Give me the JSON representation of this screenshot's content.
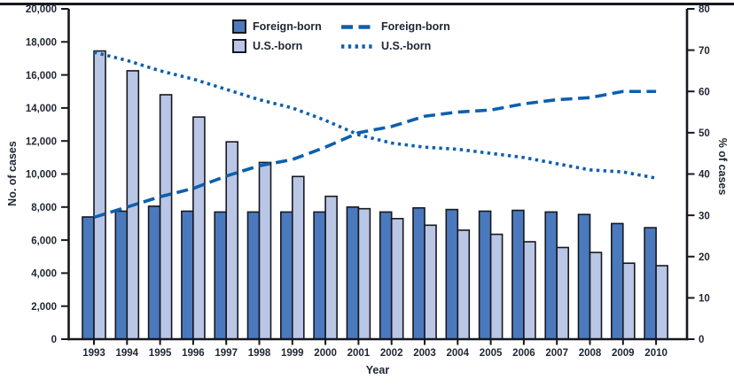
{
  "colors": {
    "foreign_bar": "#4a79bd",
    "us_bar": "#bac6e6",
    "bar_outline": "#17181f",
    "line_blue": "#0d5fae",
    "axis": "#17181f",
    "text": "#1f2633",
    "top_rule": "#17181f"
  },
  "legend": {
    "bar_items": [
      {
        "label": "Foreign-born",
        "color_key": "foreign_bar"
      },
      {
        "label": "U.S.-born",
        "color_key": "us_bar"
      }
    ],
    "line_items": [
      {
        "label": "Foreign-born",
        "style": "dashed"
      },
      {
        "label": "U.S.-born",
        "style": "dotted"
      }
    ]
  },
  "chart_data": {
    "type": "combo-bar-line",
    "title": "",
    "xlabel": "Year",
    "ylabel_left": "No. of cases",
    "ylabel_right": "% of cases",
    "categories": [
      "1993",
      "1994",
      "1995",
      "1996",
      "1997",
      "1998",
      "1999",
      "2000",
      "2001",
      "2002",
      "2003",
      "2004",
      "2005",
      "2006",
      "2007",
      "2008",
      "2009",
      "2010"
    ],
    "ylim_left": [
      0,
      20000
    ],
    "yticks_left": [
      0,
      2000,
      4000,
      6000,
      8000,
      10000,
      12000,
      14000,
      16000,
      18000,
      20000
    ],
    "ylim_right": [
      0,
      80
    ],
    "yticks_right": [
      0,
      10,
      20,
      30,
      40,
      50,
      60,
      70,
      80
    ],
    "grid": false,
    "legend_position": "top-center",
    "bar_series": [
      {
        "name": "Foreign-born",
        "axis": "left",
        "color_key": "foreign_bar",
        "values": [
          7400,
          7750,
          8050,
          7750,
          7700,
          7700,
          7700,
          7700,
          8000,
          7700,
          7950,
          7850,
          7750,
          7800,
          7700,
          7550,
          7000,
          6750
        ]
      },
      {
        "name": "U.S.-born",
        "axis": "left",
        "color_key": "us_bar",
        "values": [
          17450,
          16250,
          14800,
          13450,
          11950,
          10700,
          9850,
          8650,
          7900,
          7300,
          6900,
          6600,
          6350,
          5900,
          5550,
          5250,
          4600,
          4450
        ]
      }
    ],
    "line_series": [
      {
        "name": "Foreign-born",
        "axis": "right",
        "style": "dashed",
        "values": [
          29.5,
          32,
          34.5,
          36.5,
          39.5,
          42,
          43.5,
          46.5,
          50,
          51.5,
          54,
          55,
          55.5,
          57,
          58,
          58.5,
          60,
          60
        ]
      },
      {
        "name": "U.S.-born",
        "axis": "right",
        "style": "dotted",
        "values": [
          69.5,
          67.5,
          65,
          63,
          60.5,
          58,
          56,
          53,
          49.5,
          47.5,
          46.5,
          46,
          45,
          44,
          42.5,
          41,
          40.5,
          39
        ]
      }
    ]
  }
}
